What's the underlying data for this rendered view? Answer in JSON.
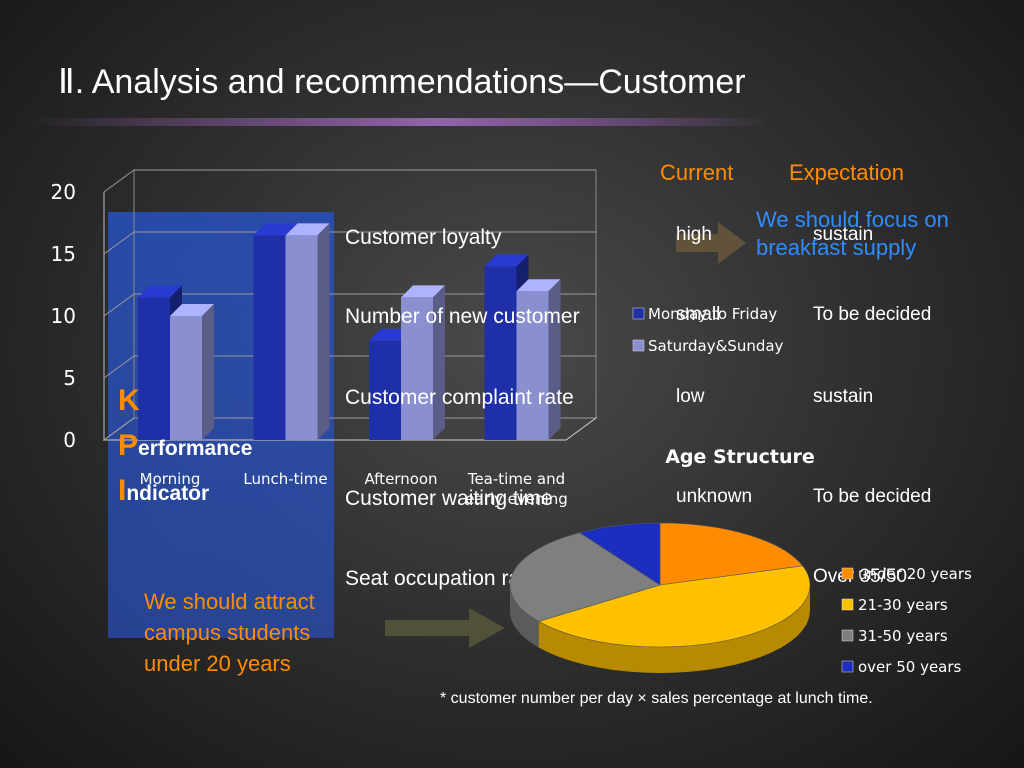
{
  "title": "Ⅱ. Analysis and recommendations—Customer",
  "kpi": {
    "lines": [
      {
        "initial": "K",
        "rest": ""
      },
      {
        "initial": "P",
        "rest": "erformance"
      },
      {
        "initial": "I",
        "rest": "ndicator"
      }
    ]
  },
  "table": {
    "headers": {
      "current": "Current",
      "expectation": "Expectation"
    },
    "rows": [
      {
        "label": "Customer loyalty",
        "current": "high",
        "expectation": "sustain"
      },
      {
        "label": "Number of new customer",
        "current": "small",
        "expectation": "To be decided"
      },
      {
        "label": "Customer complaint rate",
        "current": "low",
        "expectation": "sustain"
      },
      {
        "label": "Customer waiting time",
        "current": "unknown",
        "expectation": "To be decided"
      },
      {
        "label": "Seat occupation rate*",
        "current": "",
        "expectation": "Over 35/50"
      }
    ]
  },
  "notes": {
    "breakfast": "We should focus on breakfast supply",
    "campus": "We should attract campus students under 20 years",
    "footnote": "* customer number per day × sales percentage at lunch time."
  },
  "chart_data": [
    {
      "type": "bar",
      "categories": [
        "Morning",
        "Lunch-time",
        "Afternoon",
        "Tea-time and early evening"
      ],
      "series": [
        {
          "name": "Monday to Friday",
          "values": [
            11.5,
            16.5,
            8,
            14
          ],
          "color": "#1f2fa8"
        },
        {
          "name": "Saturday&Sunday",
          "values": [
            10,
            16.5,
            11.5,
            12
          ],
          "color": "#8a8fd0"
        }
      ],
      "yticks": [
        "0",
        "5",
        "10",
        "15",
        "20"
      ],
      "ylim": [
        0,
        20
      ],
      "legend_position": "right"
    },
    {
      "type": "pie",
      "title": "Age Structure",
      "labels": [
        "under 20 years",
        "21-30 years",
        "31-50 years",
        "over 50 years"
      ],
      "values": [
        20,
        45,
        26,
        9
      ],
      "colors": [
        "#ff8c00",
        "#ffc000",
        "#7f7f7f",
        "#1a2fc0"
      ],
      "legend_position": "right"
    }
  ]
}
